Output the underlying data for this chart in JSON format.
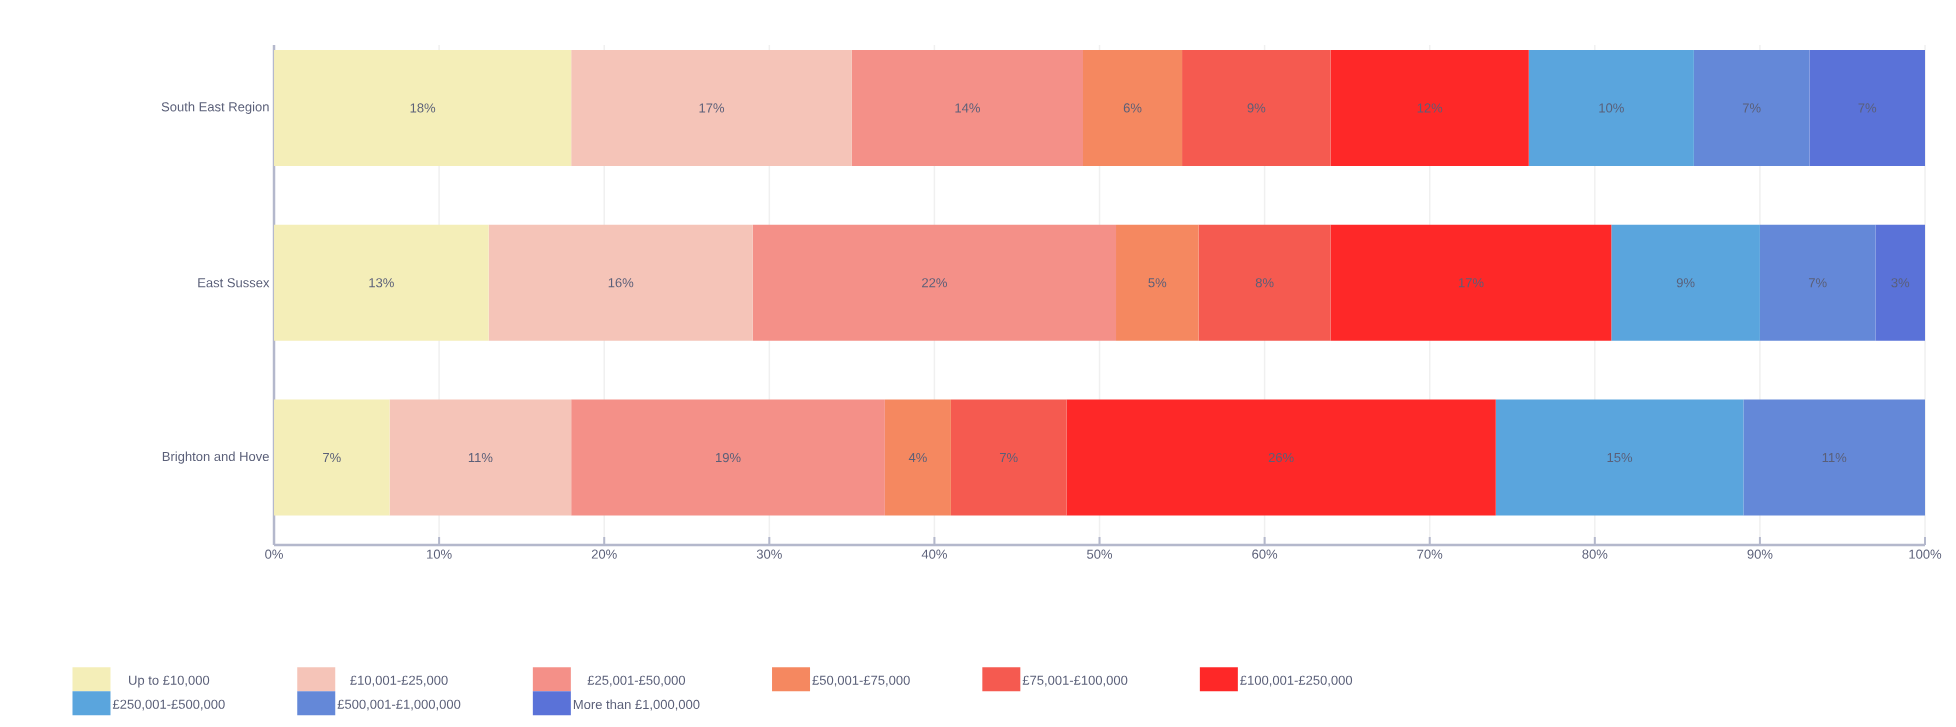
{
  "chart_data": {
    "type": "bar",
    "orientation": "horizontal",
    "stacked": true,
    "categories": [
      "South East Region",
      "East Sussex",
      "Brighton and Hove"
    ],
    "series": [
      {
        "name": "Up to £10,000",
        "color": "#f4eeb8",
        "values": [
          18,
          13,
          7
        ],
        "value_labels": [
          "18%",
          "13%",
          "7%"
        ]
      },
      {
        "name": "£10,001-£25,000",
        "color": "#f5c4b8",
        "values": [
          17,
          16,
          11
        ],
        "value_labels": [
          "17%",
          "16%",
          "11%"
        ]
      },
      {
        "name": "£25,001-£50,000",
        "color": "#f49088",
        "values": [
          14,
          22,
          19
        ],
        "value_labels": [
          "14%",
          "22%",
          "19%"
        ]
      },
      {
        "name": "£50,001-£75,000",
        "color": "#f58860",
        "values": [
          6,
          5,
          4
        ],
        "value_labels": [
          "6%",
          "5%",
          "4%"
        ]
      },
      {
        "name": "£75,001-£100,000",
        "color": "#f55a50",
        "values": [
          9,
          8,
          7
        ],
        "value_labels": [
          "9%",
          "8%",
          "7%"
        ]
      },
      {
        "name": "£100,001-£250,000",
        "color": "#fe2828",
        "values": [
          12,
          17,
          26
        ],
        "value_labels": [
          "12%",
          "17%",
          "26%"
        ]
      },
      {
        "name": "£250,001-£500,000",
        "color": "#5aa5dd",
        "values": [
          10,
          9,
          15
        ],
        "value_labels": [
          "10%",
          "9%",
          "15%"
        ]
      },
      {
        "name": "£500,001-£1,000,000",
        "color": "#6488d8",
        "values": [
          7,
          7,
          11
        ],
        "value_labels": [
          "7%",
          "7%",
          "11%"
        ]
      },
      {
        "name": "More than £1,000,000",
        "color": "#5a72d8",
        "values": [
          7,
          3,
          null
        ],
        "value_labels": [
          "7%",
          "3%",
          null
        ]
      }
    ],
    "xlim": [
      0,
      100
    ],
    "xticks": [
      {
        "value": 0,
        "label": "0%"
      },
      {
        "value": 10,
        "label": "10%"
      },
      {
        "value": 20,
        "label": "20%"
      },
      {
        "value": 30,
        "label": "30%"
      },
      {
        "value": 40,
        "label": "40%"
      },
      {
        "value": 50,
        "label": "50%"
      },
      {
        "value": 60,
        "label": "60%"
      },
      {
        "value": 70,
        "label": "70%"
      },
      {
        "value": 80,
        "label": "80%"
      },
      {
        "value": 90,
        "label": "90%"
      },
      {
        "value": 100,
        "label": "100%"
      }
    ],
    "grid": "x",
    "legend": "bottom"
  }
}
